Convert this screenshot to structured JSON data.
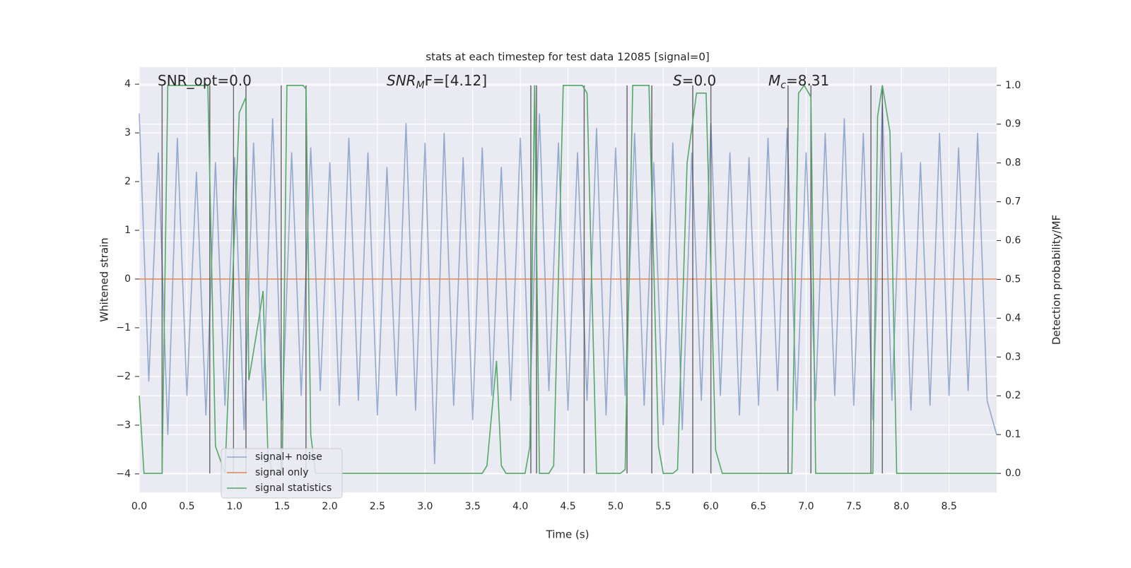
{
  "chart_data": {
    "type": "line",
    "title": "stats at each timestep for test data 12085 [signal=0]",
    "x_label": "Time (s)",
    "y_label": "Whitened strain",
    "y2_label": "Detection probability/MF",
    "xlim": [
      0,
      9
    ],
    "ylim": [
      -4.38,
      4.35
    ],
    "y2lim": [
      -0.049,
      1.047
    ],
    "xticks": [
      {
        "value": 0,
        "label": "0.0"
      },
      0.5,
      {
        "value": 1,
        "label": "1.0"
      },
      1.5,
      {
        "value": 2,
        "label": "2.0"
      },
      2.5,
      {
        "value": 3,
        "label": "3.0"
      },
      3.5,
      {
        "value": 4,
        "label": "4.0"
      },
      4.5,
      {
        "value": 5,
        "label": "5.0"
      },
      5.5,
      {
        "value": 6,
        "label": "6.0"
      },
      6.5,
      {
        "value": 7,
        "label": "7.0"
      },
      7.5,
      {
        "value": 8,
        "label": "8.0"
      },
      8.5
    ],
    "yticks": [
      {
        "value": -4,
        "label": "−4"
      },
      {
        "value": -3,
        "label": "−3"
      },
      {
        "value": -2,
        "label": "−2"
      },
      {
        "value": -1,
        "label": "−1"
      },
      0,
      1,
      2,
      3,
      4
    ],
    "y2ticks": [
      {
        "value": 0,
        "label": "0.0"
      },
      0.1,
      0.2,
      0.3,
      0.4,
      0.5,
      0.6,
      0.7,
      0.8,
      0.9,
      {
        "value": 1,
        "label": "1.0"
      }
    ],
    "grid": true,
    "legend": "lower left",
    "annotations": [
      {
        "parts": [
          "SNR_opt=0.0"
        ]
      },
      {
        "parts": [
          "SNR",
          "M",
          "F=[4.12]"
        ]
      },
      {
        "parts": [
          "S",
          "=0.0"
        ]
      },
      {
        "parts": [
          "M",
          "c",
          "=8.31"
        ]
      }
    ],
    "vlines": [
      0.24,
      0.74,
      0.99,
      1.12,
      1.49,
      1.75,
      4.11,
      4.17,
      4.67,
      5.12,
      5.38,
      5.81,
      6.0,
      6.81,
      7.05,
      7.68,
      7.8
    ],
    "vline_color": "#333333",
    "series": [
      {
        "name": "signal+ noise",
        "color": "#4c72b0",
        "x": [
          0,
          0.1,
          0.2,
          0.3,
          0.4,
          0.5,
          0.6,
          0.7,
          0.8,
          0.9,
          1,
          1.1,
          1.2,
          1.3,
          1.4,
          1.5,
          1.6,
          1.7,
          1.8,
          1.9,
          2,
          2.1,
          2.2,
          2.3,
          2.4,
          2.5,
          2.6,
          2.7,
          2.8,
          2.9,
          3,
          3.1,
          3.2,
          3.3,
          3.4,
          3.5,
          3.6,
          3.7,
          3.8,
          3.9,
          4,
          4.1,
          4.2,
          4.3,
          4.4,
          4.5,
          4.6,
          4.7,
          4.8,
          4.9,
          5,
          5.1,
          5.2,
          5.3,
          5.4,
          5.5,
          5.6,
          5.7,
          5.8,
          5.9,
          6,
          6.1,
          6.2,
          6.3,
          6.4,
          6.5,
          6.6,
          6.7,
          6.8,
          6.9,
          7,
          7.1,
          7.2,
          7.3,
          7.4,
          7.5,
          7.6,
          7.7,
          7.8,
          7.9,
          8,
          8.1,
          8.2,
          8.3,
          8.4,
          8.5,
          8.6,
          8.7,
          8.8,
          8.9,
          9
        ],
        "values": [
          3.4,
          -2.1,
          2.6,
          -3.2,
          2.9,
          -2.4,
          2.2,
          -2.8,
          2.4,
          -2.6,
          2.5,
          -3.1,
          2.8,
          -2.5,
          3.3,
          -2.9,
          2.6,
          -2.4,
          2.7,
          -2.3,
          2.4,
          -2.6,
          2.9,
          -2.5,
          2.6,
          -2.8,
          2.3,
          -2.4,
          3.2,
          -2.7,
          2.8,
          -3.8,
          3.0,
          -2.6,
          2.5,
          -2.9,
          2.7,
          -2.4,
          2.3,
          -2.5,
          2.9,
          -2.6,
          3.4,
          -2.3,
          2.8,
          -2.7,
          2.6,
          -2.5,
          3.1,
          -2.8,
          2.7,
          -2.4,
          3.0,
          -2.6,
          2.4,
          -3.0,
          2.8,
          -3.1,
          2.6,
          -2.5,
          3.2,
          -2.4,
          2.6,
          -2.8,
          2.5,
          -2.6,
          2.9,
          -2.3,
          3.1,
          -2.7,
          2.6,
          -2.5,
          3.0,
          -2.4,
          3.3,
          -2.6,
          3.0,
          -2.9,
          3.6,
          -2.5,
          2.6,
          -2.7,
          2.4,
          -2.6,
          3.0,
          -2.4,
          2.7,
          -2.3,
          3.0,
          -2.5,
          -3.2
        ]
      },
      {
        "name": "signal only",
        "color": "#dd8452",
        "x": [
          0,
          9
        ],
        "values": [
          0,
          0
        ]
      },
      {
        "name": "signal statistics",
        "color": "#55a868",
        "axis": "y2",
        "x": [
          0,
          0.05,
          0.2,
          0.24,
          0.3,
          0.72,
          0.8,
          0.9,
          1.05,
          1.12,
          1.15,
          1.25,
          1.3,
          1.35,
          1.4,
          1.5,
          1.55,
          1.72,
          1.75,
          1.8,
          1.85,
          3.6,
          3.65,
          3.75,
          3.8,
          3.85,
          4.05,
          4.1,
          4.15,
          4.2,
          4.3,
          4.35,
          4.45,
          4.65,
          4.7,
          4.8,
          5.05,
          5.1,
          5.18,
          5.35,
          5.45,
          5.5,
          5.6,
          5.65,
          5.75,
          5.85,
          5.95,
          6.05,
          6.12,
          6.85,
          6.92,
          6.98,
          7.05,
          7.1,
          7.7,
          7.75,
          7.8,
          7.88,
          7.95,
          9
        ],
        "values": [
          0.2,
          0.0,
          0.0,
          0.0,
          1.0,
          1.0,
          0.07,
          0.0,
          0.93,
          0.97,
          0.24,
          0.39,
          0.47,
          0.05,
          0.0,
          0.0,
          1.0,
          1.0,
          0.99,
          0.1,
          0.0,
          0.0,
          0.02,
          0.29,
          0.02,
          0.0,
          0.0,
          0.07,
          1.0,
          0.0,
          0.0,
          0.02,
          1.0,
          1.0,
          0.98,
          0.0,
          0.0,
          0.01,
          1.0,
          1.0,
          0.07,
          0.0,
          0.0,
          0.01,
          0.8,
          0.98,
          0.98,
          0.06,
          0.0,
          0.0,
          0.98,
          1.0,
          0.97,
          0.0,
          0.0,
          0.92,
          1.0,
          0.88,
          0.0,
          0.0
        ]
      }
    ]
  }
}
